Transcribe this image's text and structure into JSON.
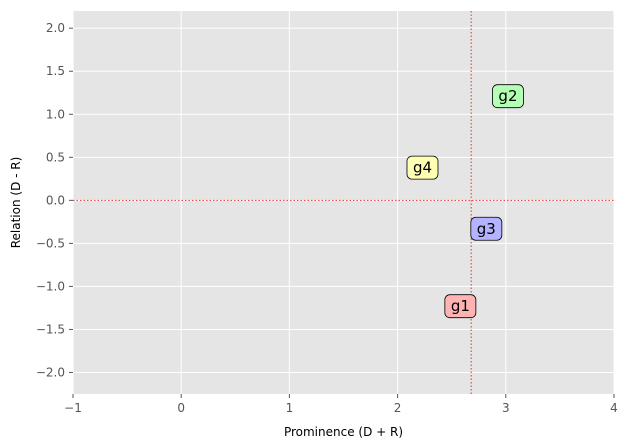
{
  "chart_data": {
    "type": "scatter",
    "xlabel": "Prominence (D + R)",
    "ylabel": "Relation (D - R)",
    "xlim": [
      -1,
      4
    ],
    "ylim": [
      -2.25,
      2.2
    ],
    "x_ticks": [
      -1,
      0,
      1,
      2,
      3,
      4
    ],
    "x_tick_labels": [
      "−1",
      "0",
      "1",
      "2",
      "3",
      "4"
    ],
    "y_ticks": [
      -2.0,
      -1.5,
      -1.0,
      -0.5,
      0.0,
      0.5,
      1.0,
      1.5,
      2.0
    ],
    "y_tick_labels": [
      "−2.0",
      "−1.5",
      "−1.0",
      "−0.5",
      "0.0",
      "0.5",
      "1.0",
      "1.5",
      "2.0"
    ],
    "grid": true,
    "reference_lines": {
      "vertical_x": 2.68,
      "horizontal_y": 0.0,
      "color": "#e8302a",
      "style": "dotted"
    },
    "points": [
      {
        "label": "g1",
        "x": 2.58,
        "y": -1.23,
        "color": "#ffb3b3"
      },
      {
        "label": "g2",
        "x": 3.02,
        "y": 1.21,
        "color": "#b3ffb3"
      },
      {
        "label": "g3",
        "x": 2.82,
        "y": -0.33,
        "color": "#b3b3ff"
      },
      {
        "label": "g4",
        "x": 2.23,
        "y": 0.38,
        "color": "#ffffb3"
      }
    ]
  }
}
